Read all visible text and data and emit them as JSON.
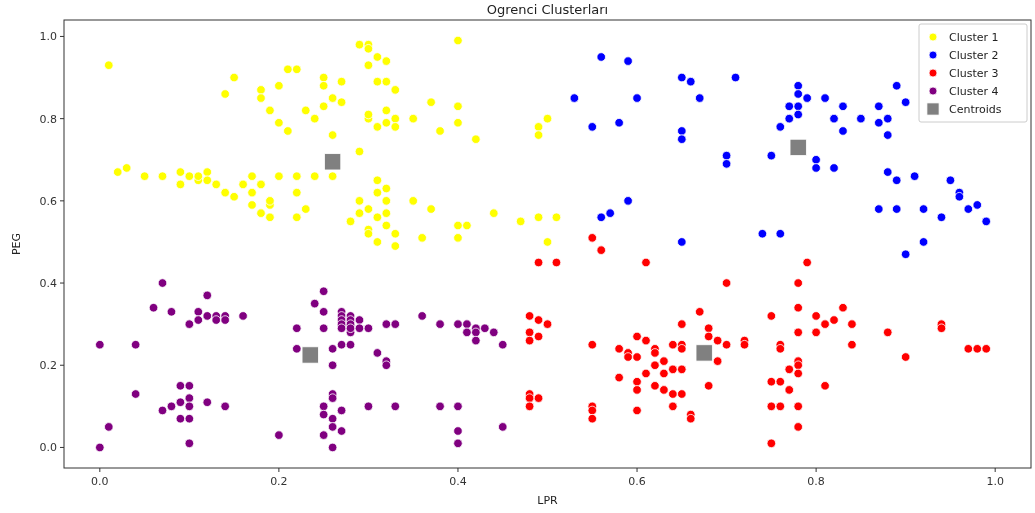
{
  "chart_data": {
    "type": "scatter",
    "title": "Ogrenci Clusterları",
    "xlabel": "LPR",
    "ylabel": "PEG",
    "xlim": [
      -0.04,
      1.04
    ],
    "ylim": [
      -0.05,
      1.04
    ],
    "xticks": [
      {
        "value": 0,
        "label": "0.0"
      },
      {
        "value": 0.2,
        "label": "0.2"
      },
      {
        "value": 0.4,
        "label": "0.4"
      },
      {
        "value": 0.6,
        "label": "0.6"
      },
      {
        "value": 0.8,
        "label": "0.8"
      },
      {
        "value": 1,
        "label": "1.0"
      }
    ],
    "yticks": [
      {
        "value": 0,
        "label": "0.0"
      },
      {
        "value": 0.2,
        "label": "0.2"
      },
      {
        "value": 0.4,
        "label": "0.4"
      },
      {
        "value": 0.6,
        "label": "0.6"
      },
      {
        "value": 0.8,
        "label": "0.8"
      },
      {
        "value": 1,
        "label": "1.0"
      }
    ],
    "grid": false,
    "legend": "top right",
    "marker": "circle",
    "series": [
      {
        "name": "Cluster 1",
        "color": "#ffff00",
        "x": [
          0.01,
          0.02,
          0.03,
          0.05,
          0.07,
          0.09,
          0.09,
          0.1,
          0.11,
          0.11,
          0.12,
          0.12,
          0.13,
          0.14,
          0.14,
          0.15,
          0.15,
          0.16,
          0.17,
          0.17,
          0.17,
          0.18,
          0.18,
          0.18,
          0.18,
          0.19,
          0.19,
          0.19,
          0.19,
          0.2,
          0.2,
          0.2,
          0.21,
          0.21,
          0.22,
          0.22,
          0.22,
          0.22,
          0.23,
          0.23,
          0.24,
          0.24,
          0.25,
          0.25,
          0.25,
          0.26,
          0.26,
          0.26,
          0.27,
          0.27,
          0.28,
          0.29,
          0.29,
          0.29,
          0.29,
          0.3,
          0.3,
          0.3,
          0.3,
          0.3,
          0.3,
          0.3,
          0.3,
          0.31,
          0.31,
          0.31,
          0.31,
          0.31,
          0.31,
          0.31,
          0.32,
          0.32,
          0.32,
          0.32,
          0.32,
          0.32,
          0.32,
          0.32,
          0.33,
          0.33,
          0.33,
          0.33,
          0.33,
          0.35,
          0.35,
          0.36,
          0.37,
          0.37,
          0.38,
          0.4,
          0.4,
          0.4,
          0.4,
          0.4,
          0.41,
          0.42,
          0.44,
          0.47,
          0.49,
          0.49,
          0.49,
          0.5,
          0.5,
          0.51
        ],
        "values": [
          0.93,
          0.67,
          0.68,
          0.66,
          0.66,
          0.67,
          0.64,
          0.66,
          0.65,
          0.66,
          0.67,
          0.65,
          0.64,
          0.62,
          0.86,
          0.9,
          0.61,
          0.64,
          0.62,
          0.66,
          0.59,
          0.87,
          0.85,
          0.64,
          0.57,
          0.82,
          0.59,
          0.56,
          0.6,
          0.88,
          0.79,
          0.66,
          0.92,
          0.77,
          0.92,
          0.62,
          0.56,
          0.66,
          0.82,
          0.58,
          0.8,
          0.66,
          0.9,
          0.88,
          0.83,
          0.85,
          0.76,
          0.66,
          0.89,
          0.84,
          0.55,
          0.98,
          0.72,
          0.6,
          0.57,
          0.98,
          0.97,
          0.93,
          0.8,
          0.81,
          0.58,
          0.53,
          0.52,
          0.95,
          0.89,
          0.78,
          0.65,
          0.62,
          0.56,
          0.5,
          0.94,
          0.89,
          0.82,
          0.79,
          0.63,
          0.6,
          0.57,
          0.54,
          0.87,
          0.8,
          0.78,
          0.52,
          0.49,
          0.8,
          0.6,
          0.51,
          0.84,
          0.58,
          0.77,
          0.99,
          0.83,
          0.79,
          0.54,
          0.51,
          0.54,
          0.75,
          0.57,
          0.55,
          0.78,
          0.76,
          0.56,
          0.8,
          0.5,
          0.56
        ]
      },
      {
        "name": "Cluster 2",
        "color": "#0000ff",
        "x": [
          0.53,
          0.55,
          0.56,
          0.56,
          0.57,
          0.58,
          0.59,
          0.59,
          0.6,
          0.65,
          0.65,
          0.65,
          0.65,
          0.66,
          0.67,
          0.7,
          0.7,
          0.71,
          0.74,
          0.75,
          0.76,
          0.76,
          0.77,
          0.77,
          0.78,
          0.78,
          0.78,
          0.78,
          0.79,
          0.8,
          0.8,
          0.81,
          0.82,
          0.82,
          0.83,
          0.83,
          0.85,
          0.87,
          0.87,
          0.87,
          0.88,
          0.88,
          0.88,
          0.89,
          0.89,
          0.89,
          0.9,
          0.9,
          0.91,
          0.92,
          0.92,
          0.94,
          0.95,
          0.96,
          0.96,
          0.97,
          0.98,
          0.99
        ],
        "values": [
          0.85,
          0.78,
          0.95,
          0.56,
          0.57,
          0.79,
          0.94,
          0.6,
          0.85,
          0.9,
          0.77,
          0.75,
          0.5,
          0.89,
          0.85,
          0.71,
          0.69,
          0.9,
          0.52,
          0.71,
          0.78,
          0.52,
          0.83,
          0.8,
          0.88,
          0.86,
          0.83,
          0.81,
          0.85,
          0.7,
          0.68,
          0.85,
          0.68,
          0.8,
          0.77,
          0.83,
          0.8,
          0.83,
          0.79,
          0.58,
          0.8,
          0.76,
          0.67,
          0.88,
          0.65,
          0.58,
          0.84,
          0.47,
          0.66,
          0.58,
          0.5,
          0.56,
          0.65,
          0.62,
          0.61,
          0.58,
          0.59,
          0.55
        ]
      },
      {
        "name": "Cluster 3",
        "color": "#ff0000",
        "x": [
          0.48,
          0.49,
          0.5,
          0.48,
          0.48,
          0.49,
          0.48,
          0.48,
          0.48,
          0.49,
          0.49,
          0.51,
          0.55,
          0.56,
          0.61,
          0.7,
          0.79,
          0.78,
          0.67,
          0.65,
          0.68,
          0.68,
          0.6,
          0.61,
          0.69,
          0.7,
          0.72,
          0.72,
          0.55,
          0.58,
          0.59,
          0.59,
          0.6,
          0.62,
          0.62,
          0.64,
          0.65,
          0.65,
          0.69,
          0.63,
          0.62,
          0.63,
          0.61,
          0.58,
          0.64,
          0.65,
          0.6,
          0.6,
          0.62,
          0.63,
          0.64,
          0.65,
          0.68,
          0.55,
          0.55,
          0.55,
          0.6,
          0.64,
          0.66,
          0.66,
          0.75,
          0.78,
          0.8,
          0.82,
          0.83,
          0.81,
          0.8,
          0.78,
          0.84,
          0.84,
          0.76,
          0.76,
          0.78,
          0.78,
          0.78,
          0.77,
          0.75,
          0.76,
          0.77,
          0.81,
          0.75,
          0.76,
          0.78,
          0.78,
          0.75,
          0.88,
          0.9,
          0.94,
          0.94,
          0.97,
          0.98,
          0.99
        ],
        "values": [
          0.32,
          0.31,
          0.3,
          0.28,
          0.26,
          0.27,
          0.13,
          0.12,
          0.1,
          0.12,
          0.45,
          0.45,
          0.51,
          0.48,
          0.45,
          0.4,
          0.45,
          0.4,
          0.33,
          0.3,
          0.29,
          0.27,
          0.27,
          0.26,
          0.26,
          0.25,
          0.26,
          0.25,
          0.25,
          0.24,
          0.23,
          0.22,
          0.22,
          0.24,
          0.23,
          0.25,
          0.25,
          0.24,
          0.21,
          0.21,
          0.2,
          0.18,
          0.18,
          0.17,
          0.19,
          0.19,
          0.16,
          0.14,
          0.15,
          0.14,
          0.13,
          0.13,
          0.15,
          0.1,
          0.09,
          0.07,
          0.09,
          0.1,
          0.08,
          0.07,
          0.32,
          0.34,
          0.32,
          0.31,
          0.34,
          0.3,
          0.28,
          0.28,
          0.3,
          0.25,
          0.25,
          0.24,
          0.21,
          0.2,
          0.18,
          0.19,
          0.16,
          0.16,
          0.14,
          0.15,
          0.1,
          0.1,
          0.1,
          0.05,
          0.01,
          0.28,
          0.22,
          0.3,
          0.29,
          0.24,
          0.24,
          0.24
        ]
      },
      {
        "name": "Cluster 4",
        "color": "#800080",
        "x": [
          0.07,
          0.06,
          0.08,
          0.12,
          0.1,
          0.11,
          0.11,
          0.12,
          0.13,
          0.13,
          0.14,
          0.14,
          0.16,
          0.0,
          0.04,
          0.04,
          0.09,
          0.1,
          0.1,
          0.09,
          0.08,
          0.07,
          0.1,
          0.12,
          0.14,
          0.09,
          0.1,
          0.1,
          0.01,
          0.0,
          0.2,
          0.22,
          0.22,
          0.24,
          0.25,
          0.25,
          0.25,
          0.26,
          0.26,
          0.27,
          0.27,
          0.27,
          0.27,
          0.27,
          0.27,
          0.28,
          0.28,
          0.28,
          0.28,
          0.28,
          0.28,
          0.29,
          0.29,
          0.3,
          0.31,
          0.32,
          0.32,
          0.32,
          0.33,
          0.36,
          0.38,
          0.4,
          0.41,
          0.42,
          0.43,
          0.44,
          0.41,
          0.42,
          0.42,
          0.45,
          0.26,
          0.26,
          0.25,
          0.25,
          0.27,
          0.26,
          0.26,
          0.27,
          0.25,
          0.26,
          0.3,
          0.33,
          0.38,
          0.4,
          0.4,
          0.4,
          0.45,
          0.27
        ],
        "values": [
          0.4,
          0.34,
          0.33,
          0.37,
          0.3,
          0.33,
          0.31,
          0.32,
          0.32,
          0.31,
          0.32,
          0.31,
          0.32,
          0.25,
          0.25,
          0.13,
          0.15,
          0.15,
          0.12,
          0.11,
          0.1,
          0.09,
          0.1,
          0.11,
          0.1,
          0.07,
          0.07,
          0.01,
          0.05,
          0.0,
          0.03,
          0.29,
          0.24,
          0.35,
          0.38,
          0.33,
          0.29,
          0.24,
          0.2,
          0.33,
          0.32,
          0.31,
          0.3,
          0.29,
          0.25,
          0.32,
          0.31,
          0.3,
          0.28,
          0.25,
          0.29,
          0.31,
          0.29,
          0.29,
          0.23,
          0.21,
          0.2,
          0.3,
          0.3,
          0.32,
          0.3,
          0.3,
          0.3,
          0.29,
          0.29,
          0.28,
          0.28,
          0.28,
          0.26,
          0.25,
          0.13,
          0.12,
          0.1,
          0.08,
          0.09,
          0.07,
          0.05,
          0.04,
          0.03,
          0.0,
          0.1,
          0.1,
          0.1,
          0.1,
          0.04,
          0.01,
          0.05,
          0.09
        ]
      },
      {
        "name": "Centroids",
        "color": "#808080",
        "marker": "square",
        "x": [
          0.26,
          0.235,
          0.675,
          0.78
        ],
        "values": [
          0.695,
          0.225,
          0.23,
          0.73
        ]
      }
    ]
  }
}
